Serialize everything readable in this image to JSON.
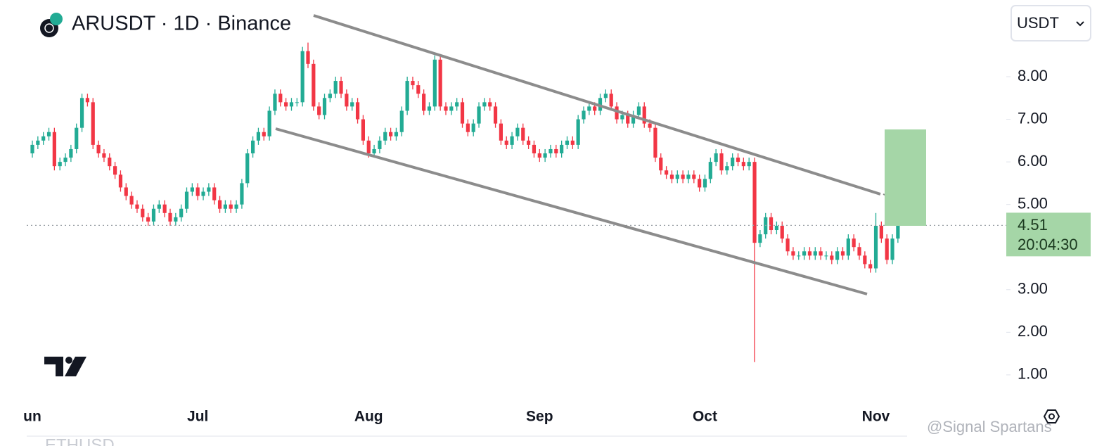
{
  "chart_data": {
    "type": "candlestick",
    "title": "ARUSDT · 1D · Binance",
    "currency": "USDT",
    "countdown": "20:04:30",
    "watermark": "@Signal Spartans",
    "bottom_ticker": "ETHUSD",
    "up_color": "#22ab94",
    "down_color": "#f23645",
    "ylim": [
      0.47,
      9.8
    ],
    "yticks": [
      {
        "value": 1,
        "label": "1.00"
      },
      {
        "value": 2,
        "label": "2.00"
      },
      {
        "value": 3,
        "label": "3.00"
      },
      {
        "value": 5,
        "label": "5.00"
      },
      {
        "value": 6,
        "label": "6.00"
      },
      {
        "value": 7,
        "label": "7.00"
      },
      {
        "value": 8,
        "label": "8.00"
      }
    ],
    "categories": [
      "un",
      null,
      null,
      null,
      null,
      null,
      null,
      null,
      null,
      null,
      null,
      null,
      null,
      null,
      null,
      null,
      null,
      null,
      null,
      null,
      null,
      null,
      null,
      null,
      null,
      null,
      null,
      null,
      null,
      null,
      "Jul",
      null,
      null,
      null,
      null,
      null,
      null,
      null,
      null,
      null,
      null,
      null,
      null,
      null,
      null,
      null,
      null,
      null,
      null,
      null,
      null,
      null,
      null,
      null,
      null,
      null,
      null,
      null,
      null,
      null,
      null,
      "Aug",
      null,
      null,
      null,
      null,
      null,
      null,
      null,
      null,
      null,
      null,
      null,
      null,
      null,
      null,
      null,
      null,
      null,
      null,
      null,
      null,
      null,
      null,
      null,
      null,
      null,
      null,
      null,
      null,
      null,
      null,
      "Sep",
      null,
      null,
      null,
      null,
      null,
      null,
      null,
      null,
      null,
      null,
      null,
      null,
      null,
      null,
      null,
      null,
      null,
      null,
      null,
      null,
      null,
      null,
      null,
      null,
      null,
      null,
      null,
      null,
      null,
      "Oct",
      null,
      null,
      null,
      null,
      null,
      null,
      null,
      null,
      null,
      null,
      null,
      null,
      null,
      null,
      null,
      null,
      null,
      null,
      null,
      null,
      null,
      null,
      null,
      null,
      null,
      null,
      null,
      null,
      null,
      null,
      "Nov",
      null,
      null,
      null,
      null
    ],
    "open": [
      6.2,
      6.4,
      6.5,
      6.6,
      6.7,
      5.9,
      6.0,
      6.1,
      6.3,
      6.8,
      7.5,
      7.4,
      6.4,
      6.2,
      6.1,
      5.9,
      5.7,
      5.4,
      5.2,
      5.0,
      4.9,
      4.7,
      4.6,
      4.9,
      5.0,
      4.8,
      4.6,
      4.7,
      4.9,
      5.3,
      5.4,
      5.2,
      5.3,
      5.4,
      5.1,
      4.9,
      5.0,
      4.9,
      5.0,
      5.5,
      6.2,
      6.5,
      6.7,
      6.6,
      7.2,
      7.6,
      7.4,
      7.3,
      7.4,
      7.4,
      8.6,
      8.3,
      7.3,
      7.1,
      7.5,
      7.6,
      7.9,
      7.6,
      7.3,
      7.4,
      7.0,
      6.5,
      6.2,
      6.3,
      6.5,
      6.7,
      6.6,
      6.7,
      7.2,
      7.9,
      7.8,
      7.6,
      7.2,
      7.3,
      8.4,
      7.3,
      7.2,
      7.3,
      7.4,
      6.9,
      6.7,
      6.9,
      7.3,
      7.4,
      7.3,
      6.9,
      6.5,
      6.4,
      6.6,
      6.8,
      6.5,
      6.4,
      6.2,
      6.1,
      6.2,
      6.3,
      6.2,
      6.4,
      6.5,
      6.4,
      7.0,
      7.2,
      7.3,
      7.2,
      7.5,
      7.6,
      7.3,
      7.0,
      7.1,
      6.9,
      7.1,
      7.3,
      6.9,
      6.8,
      6.1,
      5.8,
      5.7,
      5.6,
      5.7,
      5.6,
      5.7,
      5.6,
      5.4,
      5.6,
      6.0,
      6.2,
      5.8,
      5.9,
      6.1,
      6.0,
      5.9,
      6.0,
      4.1,
      4.3,
      4.7,
      4.4,
      4.5,
      4.2,
      3.9,
      3.8,
      3.8,
      3.9,
      3.8,
      3.9,
      3.8,
      3.8,
      3.7,
      3.9,
      3.8,
      4.2,
      4.0,
      3.8,
      3.6,
      3.5,
      4.5,
      4.2,
      3.7,
      4.2
    ],
    "high": [
      6.5,
      6.6,
      6.7,
      6.8,
      6.8,
      6.1,
      6.2,
      6.4,
      6.9,
      7.6,
      7.6,
      7.5,
      6.5,
      6.3,
      6.2,
      6.0,
      5.8,
      5.5,
      5.3,
      5.1,
      5.0,
      4.8,
      5.0,
      5.1,
      5.1,
      4.9,
      4.8,
      5.0,
      5.4,
      5.5,
      5.5,
      5.4,
      5.5,
      5.5,
      5.2,
      5.1,
      5.1,
      5.1,
      5.6,
      6.3,
      6.6,
      6.8,
      6.8,
      7.3,
      7.7,
      7.7,
      7.5,
      7.5,
      7.5,
      8.7,
      8.8,
      8.4,
      7.4,
      7.6,
      7.7,
      8.0,
      8.0,
      7.7,
      7.5,
      7.5,
      7.1,
      6.6,
      6.4,
      6.6,
      6.8,
      6.8,
      6.8,
      7.3,
      8.0,
      8.0,
      7.9,
      7.7,
      7.4,
      8.5,
      8.5,
      7.4,
      7.4,
      7.5,
      7.5,
      7.0,
      7.0,
      7.4,
      7.5,
      7.5,
      7.4,
      7.0,
      6.6,
      6.7,
      6.9,
      6.9,
      6.6,
      6.5,
      6.3,
      6.3,
      6.4,
      6.4,
      6.5,
      6.6,
      6.6,
      7.1,
      7.3,
      7.4,
      7.4,
      7.6,
      7.7,
      7.7,
      7.4,
      7.2,
      7.2,
      7.2,
      7.4,
      7.4,
      7.0,
      6.9,
      6.2,
      5.9,
      5.8,
      5.8,
      5.8,
      5.8,
      5.8,
      5.7,
      5.7,
      6.1,
      6.3,
      6.3,
      6.0,
      6.2,
      6.2,
      6.1,
      6.1,
      6.1,
      4.4,
      4.8,
      4.8,
      4.6,
      4.6,
      4.3,
      4.0,
      3.9,
      4.0,
      4.0,
      4.0,
      4.0,
      3.9,
      3.9,
      4.0,
      4.0,
      4.3,
      4.3,
      4.1,
      3.9,
      3.7,
      4.8,
      4.6,
      4.3,
      4.3,
      4.6
    ],
    "low": [
      6.1,
      6.3,
      6.4,
      6.5,
      5.8,
      5.8,
      5.9,
      6.0,
      6.2,
      6.7,
      7.3,
      6.3,
      6.1,
      6.0,
      5.8,
      5.6,
      5.3,
      5.1,
      4.9,
      4.8,
      4.6,
      4.5,
      4.5,
      4.8,
      4.7,
      4.5,
      4.5,
      4.6,
      4.8,
      5.2,
      5.1,
      5.1,
      5.2,
      5.0,
      4.8,
      4.8,
      4.8,
      4.8,
      4.9,
      5.4,
      6.1,
      6.4,
      6.5,
      6.5,
      7.1,
      7.3,
      7.2,
      7.2,
      7.3,
      7.3,
      8.2,
      7.2,
      7.0,
      7.0,
      7.4,
      7.5,
      7.5,
      7.2,
      7.2,
      6.9,
      6.4,
      6.1,
      6.1,
      6.2,
      6.4,
      6.5,
      6.5,
      6.6,
      7.1,
      7.7,
      7.5,
      7.1,
      7.1,
      7.2,
      7.2,
      7.1,
      7.1,
      7.2,
      6.8,
      6.6,
      6.6,
      6.8,
      7.2,
      7.2,
      6.8,
      6.4,
      6.3,
      6.3,
      6.5,
      6.4,
      6.3,
      6.1,
      6.0,
      6.0,
      6.1,
      6.1,
      6.1,
      6.3,
      6.3,
      6.3,
      6.9,
      7.1,
      7.1,
      7.1,
      7.4,
      7.2,
      6.9,
      6.9,
      6.8,
      6.8,
      7.0,
      6.8,
      6.7,
      6.0,
      5.7,
      5.6,
      5.5,
      5.5,
      5.5,
      5.5,
      5.5,
      5.3,
      5.3,
      5.5,
      5.9,
      5.7,
      5.7,
      5.8,
      5.9,
      5.8,
      5.8,
      1.3,
      4.0,
      4.2,
      4.3,
      4.3,
      4.1,
      3.8,
      3.7,
      3.7,
      3.7,
      3.7,
      3.7,
      3.7,
      3.7,
      3.6,
      3.6,
      3.7,
      3.7,
      3.9,
      3.7,
      3.5,
      3.4,
      3.4,
      4.1,
      3.6,
      3.6,
      4.1
    ],
    "close": [
      6.4,
      6.5,
      6.6,
      6.7,
      5.9,
      6.0,
      6.1,
      6.3,
      6.8,
      7.5,
      7.4,
      6.4,
      6.2,
      6.1,
      5.9,
      5.7,
      5.4,
      5.2,
      5.0,
      4.9,
      4.7,
      4.6,
      4.9,
      5.0,
      4.8,
      4.6,
      4.7,
      4.9,
      5.3,
      5.4,
      5.2,
      5.3,
      5.4,
      5.1,
      4.9,
      5.0,
      4.9,
      5.0,
      5.5,
      6.2,
      6.5,
      6.7,
      6.6,
      7.2,
      7.6,
      7.4,
      7.3,
      7.4,
      7.4,
      8.6,
      8.3,
      7.3,
      7.1,
      7.5,
      7.6,
      7.9,
      7.6,
      7.3,
      7.4,
      7.0,
      6.5,
      6.2,
      6.3,
      6.5,
      6.7,
      6.6,
      6.7,
      7.2,
      7.9,
      7.8,
      7.6,
      7.2,
      7.3,
      8.4,
      7.3,
      7.2,
      7.3,
      7.4,
      6.9,
      6.7,
      6.9,
      7.3,
      7.4,
      7.3,
      6.9,
      6.5,
      6.4,
      6.6,
      6.8,
      6.5,
      6.4,
      6.2,
      6.1,
      6.2,
      6.3,
      6.2,
      6.4,
      6.5,
      6.4,
      7.0,
      7.2,
      7.3,
      7.2,
      7.5,
      7.6,
      7.3,
      7.0,
      7.1,
      6.9,
      7.1,
      7.3,
      6.9,
      6.8,
      6.1,
      5.8,
      5.7,
      5.6,
      5.7,
      5.6,
      5.7,
      5.6,
      5.4,
      5.6,
      6.0,
      6.2,
      5.8,
      5.9,
      6.1,
      6.0,
      5.9,
      6.0,
      4.1,
      4.3,
      4.7,
      4.4,
      4.5,
      4.2,
      3.9,
      3.8,
      3.8,
      3.9,
      3.8,
      3.9,
      3.8,
      3.8,
      3.7,
      3.9,
      3.8,
      4.2,
      4.0,
      3.8,
      3.6,
      3.5,
      4.5,
      4.2,
      3.7,
      4.2,
      4.51
    ]
  }
}
